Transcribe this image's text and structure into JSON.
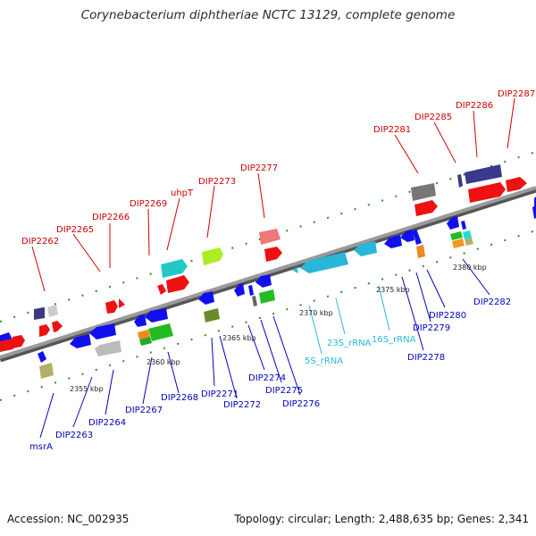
{
  "title": "Corynebacterium diphtheriae NCTC 13129, complete genome",
  "footer": {
    "accession": "Accession: NC_002935",
    "summary": "Topology: circular; Length: 2,488,635 bp; Genes: 2,341"
  },
  "colors": {
    "label_top": "#cc0000",
    "label_bottom": "#0000bb",
    "label_rna": "#29b6d9",
    "backbone": "#888888",
    "tick": "#2e8b2e"
  },
  "axis_ticks": [
    "2355 kbp",
    "2360 kbp",
    "2365 kbp",
    "2370 kbp",
    "2375 kbp",
    "2380 kbp"
  ],
  "labels_top": [
    "DIP2262",
    "DIP2265",
    "DIP2266",
    "DIP2269",
    "uhpT",
    "DIP2273",
    "DIP2277",
    "DIP2281",
    "DIP2285",
    "DIP2286",
    "DIP2287"
  ],
  "labels_bottom": [
    "msrA",
    "DIP2263",
    "DIP2264",
    "DIP2267",
    "DIP2268",
    "DIP2271",
    "DIP2272",
    "DIP2274",
    "DIP2275",
    "DIP2276",
    "DIP2278",
    "DIP2279",
    "DIP2280",
    "DIP2282"
  ],
  "labels_rna": [
    "5S_rRNA",
    "23S_rRNA",
    "16S_rRNA"
  ]
}
